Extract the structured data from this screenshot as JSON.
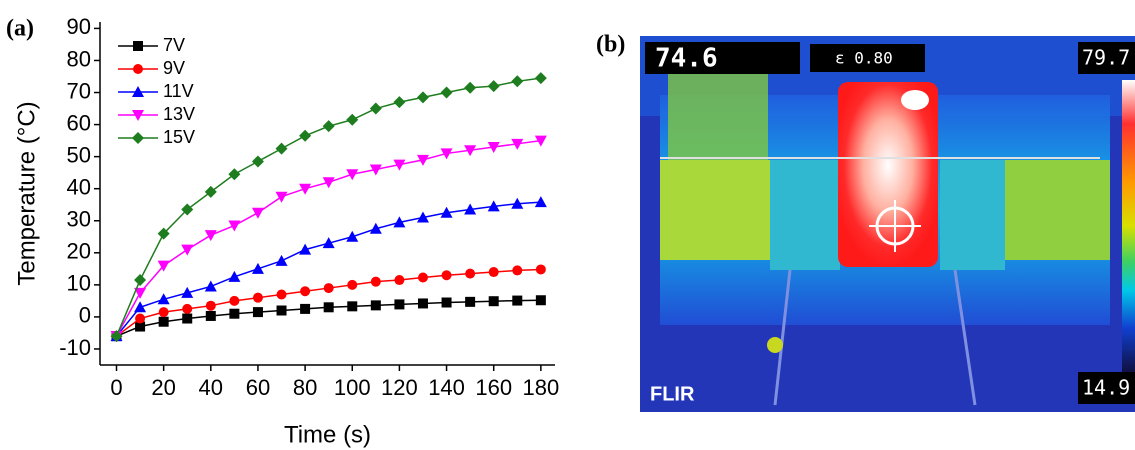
{
  "panel_labels": [
    "(a)",
    "(b)"
  ],
  "chart_data": {
    "type": "line",
    "xlabel": "Time (s)",
    "ylabel": "Temperature (°C)",
    "x": [
      0,
      10,
      20,
      30,
      40,
      50,
      60,
      70,
      80,
      90,
      100,
      110,
      120,
      130,
      140,
      150,
      160,
      170,
      180
    ],
    "xlim": [
      -7,
      186
    ],
    "xticks": [
      0,
      20,
      40,
      60,
      80,
      100,
      120,
      140,
      160,
      180
    ],
    "ylim": [
      -15,
      92
    ],
    "yticks": [
      -10,
      0,
      10,
      20,
      30,
      40,
      50,
      60,
      70,
      80,
      90
    ],
    "legend": "top-left",
    "series": [
      {
        "name": "7V",
        "color": "#000000",
        "marker": "square",
        "values": [
          -6,
          -3,
          -1.5,
          -0.5,
          0.3,
          1,
          1.5,
          2,
          2.5,
          3,
          3.3,
          3.6,
          3.9,
          4.2,
          4.5,
          4.7,
          4.9,
          5.1,
          5.2
        ]
      },
      {
        "name": "9V",
        "color": "#ff0000",
        "marker": "circle",
        "values": [
          -6,
          -0.5,
          1.5,
          2.5,
          3.5,
          5,
          6,
          7,
          8,
          9,
          10,
          11,
          11.5,
          12.3,
          13,
          13.5,
          14,
          14.5,
          14.8
        ]
      },
      {
        "name": "11V",
        "color": "#0000ff",
        "marker": "triangle-up",
        "values": [
          -6,
          3,
          5.5,
          7.5,
          9.5,
          12.5,
          15,
          17.5,
          21,
          23,
          25,
          27.5,
          29.5,
          31,
          32.5,
          33.5,
          34.5,
          35.3,
          35.8
        ]
      },
      {
        "name": "13V",
        "color": "#ff00ff",
        "marker": "triangle-down",
        "values": [
          -6,
          7.5,
          16,
          21,
          25.5,
          28.5,
          32.5,
          37.5,
          40,
          42,
          44.5,
          46,
          47.5,
          49,
          51,
          52,
          53,
          54,
          55
        ]
      },
      {
        "name": "15V",
        "color": "#1e7d1e",
        "marker": "diamond",
        "values": [
          -6,
          11.5,
          26,
          33.5,
          39,
          44.5,
          48.5,
          52.5,
          56.5,
          59.5,
          61.5,
          65,
          67,
          68.5,
          70,
          71.5,
          72,
          73.5,
          74.5
        ]
      }
    ]
  },
  "thermal_image": {
    "spot_temperature": "74.6",
    "emissivity": "ε 0.80",
    "scale_max": "79.7",
    "scale_min": "14.9",
    "brand": "FLIR"
  }
}
